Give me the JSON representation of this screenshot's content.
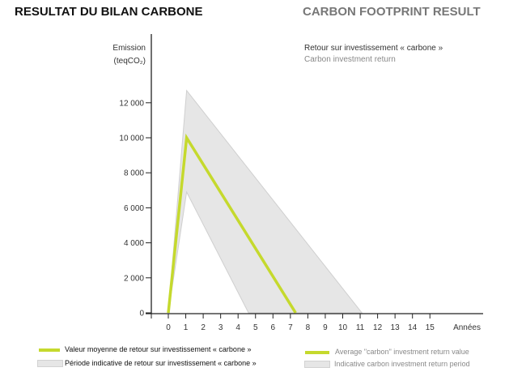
{
  "header": {
    "title_fr": "RESULTAT DU BILAN CARBONE",
    "title_en": "CARBON FOOTPRINT RESULT"
  },
  "chart_data": {
    "type": "line",
    "title": "Retour sur investissement « carbone »",
    "subtitle": "Carbon  investment return",
    "ylabel": "Emission",
    "ylabel_unit": "(teqCO₂)",
    "xlabel": "Années",
    "xlim": [
      -1,
      18
    ],
    "ylim": [
      0,
      14000
    ],
    "xticks": [
      0,
      1,
      2,
      3,
      4,
      5,
      6,
      7,
      8,
      9,
      10,
      11,
      12,
      13,
      14,
      15
    ],
    "yticks": [
      {
        "v": 0,
        "label": "0"
      },
      {
        "v": 2000,
        "label": "2 000"
      },
      {
        "v": 4000,
        "label": "4 000"
      },
      {
        "v": 6000,
        "label": "6 000"
      },
      {
        "v": 8000,
        "label": "8 000"
      },
      {
        "v": 10000,
        "label": "10 000"
      },
      {
        "v": 12000,
        "label": "12 000"
      }
    ],
    "series": [
      {
        "name": "Valeur moyenne de retour sur investissement  « carbone »",
        "name_en": "Average \"carbon\" investment return value",
        "color": "#c5d92d",
        "type": "line",
        "points": [
          [
            0,
            0
          ],
          [
            1.05,
            10000
          ],
          [
            7.3,
            0
          ]
        ]
      },
      {
        "name": "Période indicative de retour sur investissement  « carbone »",
        "name_en": "Indicative carbon investment return period",
        "color": "#e6e6e6",
        "type": "area",
        "upper": [
          [
            0,
            0
          ],
          [
            1.05,
            12700
          ],
          [
            11.1,
            0
          ]
        ],
        "lower": [
          [
            0,
            0
          ],
          [
            1.05,
            6900
          ],
          [
            4.6,
            0
          ]
        ]
      }
    ],
    "grid": false,
    "legend": "bottom"
  }
}
